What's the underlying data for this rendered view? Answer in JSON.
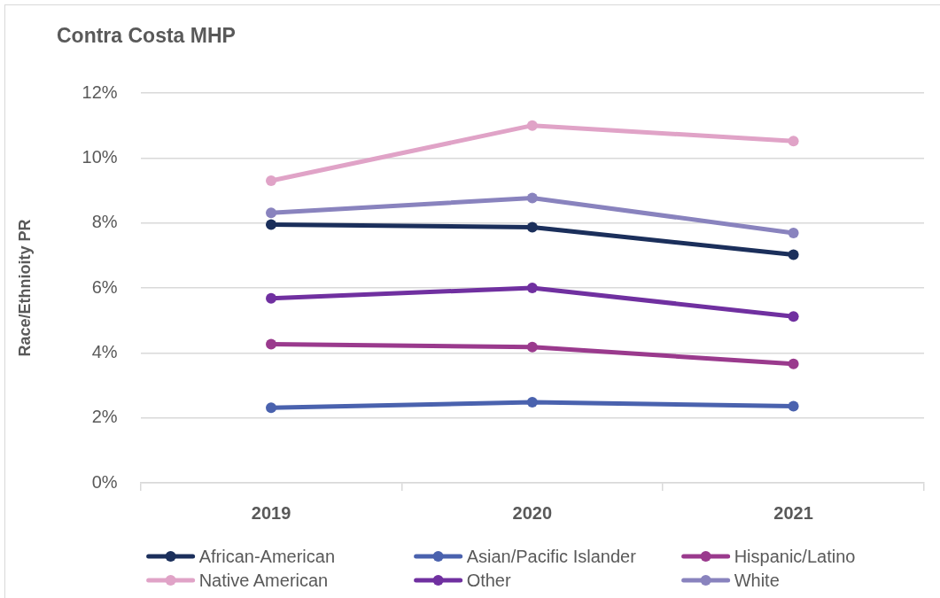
{
  "chart_data": {
    "type": "line",
    "title": "Contra Costa MHP",
    "ylabel": "Race/Ethnioity PR",
    "categories": [
      "2019",
      "2020",
      "2021"
    ],
    "series": [
      {
        "name": "African-American",
        "color": "#1b2f5b",
        "values": [
          7.95,
          7.87,
          7.02
        ]
      },
      {
        "name": "Asian/Pacific Islander",
        "color": "#4a62ae",
        "values": [
          2.31,
          2.48,
          2.36
        ]
      },
      {
        "name": "Hispanic/Latino",
        "color": "#9a3a8d",
        "values": [
          4.27,
          4.18,
          3.66
        ]
      },
      {
        "name": "Native American",
        "color": "#e0a3c7",
        "values": [
          9.3,
          11.0,
          10.52
        ]
      },
      {
        "name": "Other",
        "color": "#7030a0",
        "values": [
          5.68,
          6.0,
          5.12
        ]
      },
      {
        "name": "White",
        "color": "#8983be",
        "values": [
          8.31,
          8.77,
          7.69
        ]
      }
    ],
    "ylim": [
      0,
      12
    ],
    "yticks": [
      {
        "value": 0,
        "label": "0%"
      },
      {
        "value": 2,
        "label": "2%"
      },
      {
        "value": 4,
        "label": "4%"
      },
      {
        "value": 6,
        "label": "6%"
      },
      {
        "value": 8,
        "label": "8%"
      },
      {
        "value": 10,
        "label": "10%"
      },
      {
        "value": 12,
        "label": "12%"
      }
    ],
    "grid": "y",
    "legend": "bottom",
    "marker": "circle"
  }
}
